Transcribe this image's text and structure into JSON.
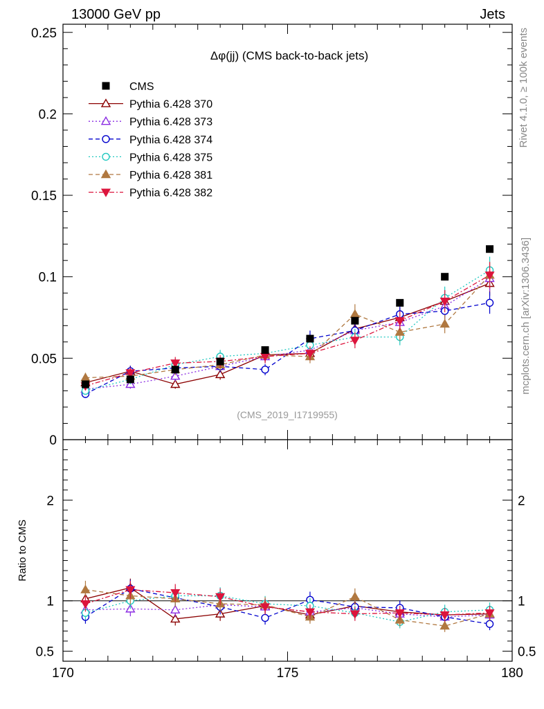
{
  "header": {
    "left_title": "13000 GeV pp",
    "right_title": "Jets"
  },
  "side_labels": {
    "rivet": "Rivet 4.1.0, ≥ 100k events",
    "mcplots": "mcplots.cern.ch [arXiv:1306.3436]"
  },
  "chart_data": [
    {
      "type": "scatter",
      "panel": "main",
      "title": "Δφ(jj) (CMS back-to-back jets)",
      "watermark": "(CMS_2019_I1719955)",
      "xlim": [
        170,
        180
      ],
      "ylim": [
        0,
        0.255
      ],
      "y_tick_labels": [
        "0",
        "0.05",
        "0.1",
        "0.15",
        "0.2",
        "0.25"
      ],
      "x": [
        170.5,
        171.5,
        172.5,
        173.5,
        174.5,
        175.5,
        176.5,
        177.5,
        178.5,
        179.5
      ],
      "series": [
        {
          "name": "CMS",
          "color": "#000000",
          "marker": "square-filled",
          "line": "none",
          "values": [
            0.034,
            0.037,
            0.043,
            0.048,
            0.055,
            0.062,
            0.073,
            0.084,
            0.1,
            0.117
          ]
        },
        {
          "name": "Pythia 6.428 370",
          "color": "#8b0000",
          "marker": "triangle-up-open",
          "line": "solid",
          "values": [
            0.035,
            0.042,
            0.034,
            0.04,
            0.052,
            0.053,
            0.068,
            0.075,
            0.085,
            0.096
          ]
        },
        {
          "name": "Pythia 6.428 373",
          "color": "#8a2be2",
          "marker": "triangle-up-open",
          "line": "dotted",
          "values": [
            0.031,
            0.034,
            0.039,
            0.045,
            0.051,
            0.055,
            0.067,
            0.072,
            0.082,
            0.099
          ]
        },
        {
          "name": "Pythia 6.428 374",
          "color": "#0000cd",
          "marker": "circle-open",
          "line": "dashed",
          "values": [
            0.028,
            0.042,
            0.044,
            0.045,
            0.043,
            0.062,
            0.067,
            0.077,
            0.079,
            0.084
          ]
        },
        {
          "name": "Pythia 6.428 375",
          "color": "#20c8c0",
          "marker": "circle-open",
          "line": "dotted",
          "values": [
            0.03,
            0.037,
            0.046,
            0.051,
            0.053,
            0.058,
            0.063,
            0.063,
            0.087,
            0.104
          ]
        },
        {
          "name": "Pythia 6.428 381",
          "color": "#b07840",
          "marker": "triangle-up-filled",
          "line": "dashed",
          "values": [
            0.038,
            0.039,
            0.043,
            0.046,
            0.052,
            0.051,
            0.077,
            0.066,
            0.071,
            0.101
          ]
        },
        {
          "name": "Pythia 6.428 382",
          "color": "#dc143c",
          "marker": "triangle-down-filled",
          "line": "dashdot",
          "values": [
            0.033,
            0.041,
            0.047,
            0.048,
            0.051,
            0.053,
            0.061,
            0.073,
            0.085,
            0.101
          ]
        }
      ]
    },
    {
      "type": "scatter",
      "panel": "ratio",
      "ylabel": "Ratio to CMS",
      "xlim": [
        170,
        180
      ],
      "ylim": [
        0.4,
        2.6
      ],
      "y_tick_labels": [
        "0.5",
        "1",
        "2"
      ],
      "x_tick_labels": [
        "170",
        "175",
        "180"
      ],
      "x": [
        170.5,
        171.5,
        172.5,
        173.5,
        174.5,
        175.5,
        176.5,
        177.5,
        178.5,
        179.5
      ],
      "series": [
        {
          "name": "Pythia 6.428 370",
          "values": [
            1.02,
            1.13,
            0.82,
            0.87,
            0.95,
            0.86,
            0.95,
            0.89,
            0.86,
            0.87
          ]
        },
        {
          "name": "Pythia 6.428 373",
          "values": [
            0.91,
            0.92,
            0.91,
            0.96,
            0.94,
            0.89,
            0.93,
            0.87,
            0.84,
            0.86
          ]
        },
        {
          "name": "Pythia 6.428 374",
          "values": [
            0.84,
            1.12,
            1.03,
            0.94,
            0.83,
            1.01,
            0.94,
            0.93,
            0.84,
            0.77
          ]
        },
        {
          "name": "Pythia 6.428 375",
          "values": [
            0.88,
            1.0,
            1.05,
            1.05,
            0.97,
            0.95,
            0.88,
            0.79,
            0.89,
            0.91
          ]
        },
        {
          "name": "Pythia 6.428 381",
          "values": [
            1.11,
            1.05,
            1.02,
            0.97,
            0.96,
            0.84,
            1.04,
            0.81,
            0.75,
            0.87
          ]
        },
        {
          "name": "Pythia 6.428 382",
          "values": [
            0.97,
            1.11,
            1.08,
            1.04,
            0.94,
            0.89,
            0.87,
            0.88,
            0.86,
            0.88
          ]
        }
      ]
    }
  ]
}
